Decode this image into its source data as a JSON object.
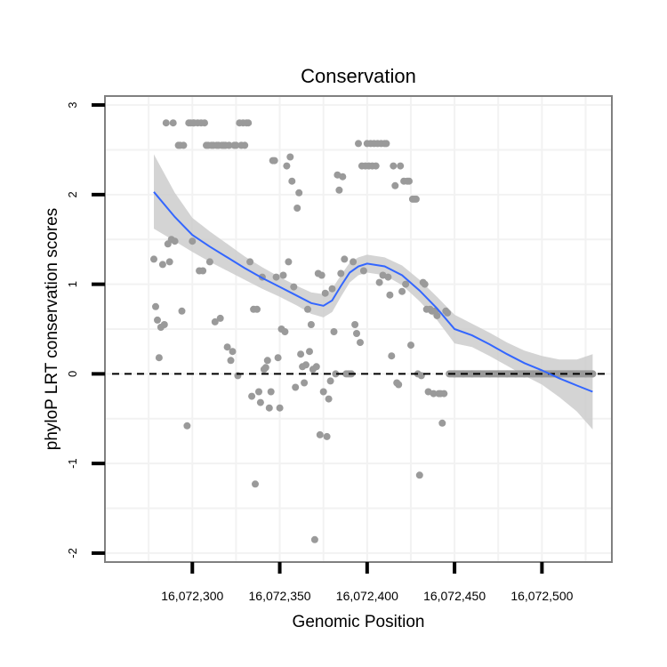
{
  "chart_data": {
    "type": "scatter",
    "title": "Conservation",
    "xlabel": "Genomic Position",
    "ylabel": "phyloP LRT conservation scores",
    "xlim": [
      16072250,
      16072540
    ],
    "ylim": [
      -2.1,
      3.1
    ],
    "x_ticks": [
      16072300,
      16072350,
      16072400,
      16072450,
      16072500
    ],
    "x_tick_labels": [
      "16,072,300",
      "16,072,350",
      "16,072,400",
      "16,072,450",
      "16,072,500"
    ],
    "y_ticks": [
      -2,
      -1,
      0,
      1,
      2,
      3
    ],
    "y_tick_labels": [
      "-2",
      "-1",
      "0",
      "1",
      "2",
      "3"
    ],
    "reference_line": {
      "y": 0,
      "style": "dashed"
    },
    "colors": {
      "points": "#9a9a9a",
      "smooth": "#3366ff",
      "band": "#cccccc",
      "frame": "#808080",
      "grid": "#f2f2f2"
    },
    "points": [
      [
        16072278,
        1.28
      ],
      [
        16072279,
        0.75
      ],
      [
        16072280,
        0.6
      ],
      [
        16072281,
        0.18
      ],
      [
        16072282,
        0.52
      ],
      [
        16072283,
        1.22
      ],
      [
        16072284,
        0.55
      ],
      [
        16072285,
        2.8
      ],
      [
        16072286,
        1.45
      ],
      [
        16072287,
        1.25
      ],
      [
        16072288,
        1.5
      ],
      [
        16072289,
        2.8
      ],
      [
        16072290,
        1.48
      ],
      [
        16072292,
        2.55
      ],
      [
        16072293,
        2.55
      ],
      [
        16072294,
        0.7
      ],
      [
        16072295,
        2.55
      ],
      [
        16072297,
        -0.58
      ],
      [
        16072298,
        2.8
      ],
      [
        16072299,
        2.8
      ],
      [
        16072300,
        1.48
      ],
      [
        16072300.5,
        2.8
      ],
      [
        16072301,
        2.8
      ],
      [
        16072303,
        2.8
      ],
      [
        16072304,
        1.15
      ],
      [
        16072305,
        2.8
      ],
      [
        16072306,
        1.15
      ],
      [
        16072307,
        2.8
      ],
      [
        16072308,
        2.55
      ],
      [
        16072309,
        2.55
      ],
      [
        16072310,
        1.25
      ],
      [
        16072311,
        2.55
      ],
      [
        16072312,
        2.55
      ],
      [
        16072313,
        0.58
      ],
      [
        16072314,
        2.55
      ],
      [
        16072315,
        2.55
      ],
      [
        16072316,
        0.62
      ],
      [
        16072317,
        2.55
      ],
      [
        16072318,
        2.55
      ],
      [
        16072319,
        2.55
      ],
      [
        16072320,
        0.3
      ],
      [
        16072321,
        2.55
      ],
      [
        16072322,
        0.15
      ],
      [
        16072323,
        0.25
      ],
      [
        16072324,
        2.55
      ],
      [
        16072325,
        2.55
      ],
      [
        16072326,
        -0.02
      ],
      [
        16072327,
        2.8
      ],
      [
        16072328,
        2.55
      ],
      [
        16072329,
        2.8
      ],
      [
        16072330,
        2.55
      ],
      [
        16072331,
        2.8
      ],
      [
        16072332,
        2.8
      ],
      [
        16072333,
        1.25
      ],
      [
        16072334,
        -0.25
      ],
      [
        16072335,
        0.72
      ],
      [
        16072336,
        -1.23
      ],
      [
        16072337,
        0.72
      ],
      [
        16072338,
        -0.2
      ],
      [
        16072339,
        -0.32
      ],
      [
        16072340,
        1.08
      ],
      [
        16072341,
        0.05
      ],
      [
        16072342,
        0.07
      ],
      [
        16072343,
        0.15
      ],
      [
        16072344,
        -0.38
      ],
      [
        16072345,
        -0.2
      ],
      [
        16072346,
        2.38
      ],
      [
        16072347,
        2.38
      ],
      [
        16072348,
        1.08
      ],
      [
        16072349,
        0.18
      ],
      [
        16072350,
        -0.38
      ],
      [
        16072351,
        0.5
      ],
      [
        16072352,
        1.1
      ],
      [
        16072353,
        0.47
      ],
      [
        16072354,
        2.32
      ],
      [
        16072355,
        1.25
      ],
      [
        16072356,
        2.42
      ],
      [
        16072357,
        2.15
      ],
      [
        16072358,
        0.97
      ],
      [
        16072359,
        -0.15
      ],
      [
        16072360,
        1.85
      ],
      [
        16072361,
        2.02
      ],
      [
        16072362,
        0.22
      ],
      [
        16072363,
        0.08
      ],
      [
        16072364,
        -0.1
      ],
      [
        16072365,
        0.1
      ],
      [
        16072366,
        0.72
      ],
      [
        16072367,
        0.25
      ],
      [
        16072368,
        0.55
      ],
      [
        16072369,
        0.05
      ],
      [
        16072370,
        -1.85
      ],
      [
        16072371,
        0.08
      ],
      [
        16072372,
        1.12
      ],
      [
        16072373,
        -0.68
      ],
      [
        16072374,
        1.1
      ],
      [
        16072375,
        -0.2
      ],
      [
        16072376,
        0.9
      ],
      [
        16072377,
        -0.7
      ],
      [
        16072378,
        -0.28
      ],
      [
        16072379,
        -0.08
      ],
      [
        16072380,
        0.95
      ],
      [
        16072381,
        0.47
      ],
      [
        16072382,
        0.0
      ],
      [
        16072383,
        2.22
      ],
      [
        16072384,
        2.05
      ],
      [
        16072385,
        1.12
      ],
      [
        16072386,
        2.2
      ],
      [
        16072387,
        1.28
      ],
      [
        16072388,
        0.0
      ],
      [
        16072389,
        0.0
      ],
      [
        16072390,
        0.0
      ],
      [
        16072391,
        0.0
      ],
      [
        16072392,
        1.25
      ],
      [
        16072393,
        0.55
      ],
      [
        16072394,
        0.45
      ],
      [
        16072395,
        2.57
      ],
      [
        16072396,
        0.35
      ],
      [
        16072397,
        2.32
      ],
      [
        16072398,
        1.15
      ],
      [
        16072399,
        2.32
      ],
      [
        16072400,
        2.57
      ],
      [
        16072401,
        2.32
      ],
      [
        16072402,
        2.57
      ],
      [
        16072403,
        2.32
      ],
      [
        16072404,
        2.57
      ],
      [
        16072405,
        2.32
      ],
      [
        16072406,
        2.57
      ],
      [
        16072407,
        1.02
      ],
      [
        16072408,
        2.57
      ],
      [
        16072409,
        1.1
      ],
      [
        16072410,
        2.57
      ],
      [
        16072411,
        2.57
      ],
      [
        16072412,
        1.08
      ],
      [
        16072413,
        0.88
      ],
      [
        16072414,
        0.2
      ],
      [
        16072415,
        2.32
      ],
      [
        16072416,
        2.1
      ],
      [
        16072417,
        -0.1
      ],
      [
        16072418,
        -0.12
      ],
      [
        16072419,
        2.32
      ],
      [
        16072420,
        0.92
      ],
      [
        16072421,
        2.15
      ],
      [
        16072422,
        1.0
      ],
      [
        16072423,
        2.15
      ],
      [
        16072424,
        2.15
      ],
      [
        16072425,
        0.32
      ],
      [
        16072426,
        1.95
      ],
      [
        16072427,
        1.95
      ],
      [
        16072428,
        1.95
      ],
      [
        16072429,
        0.0
      ],
      [
        16072430,
        -1.13
      ],
      [
        16072431,
        -0.02
      ],
      [
        16072432,
        1.02
      ],
      [
        16072433,
        1.0
      ],
      [
        16072434,
        0.72
      ],
      [
        16072435,
        -0.2
      ],
      [
        16072436,
        0.72
      ],
      [
        16072437,
        0.7
      ],
      [
        16072438,
        -0.22
      ],
      [
        16072439,
        0.7
      ],
      [
        16072440,
        0.65
      ],
      [
        16072441,
        -0.22
      ],
      [
        16072442,
        -0.22
      ],
      [
        16072443,
        -0.55
      ],
      [
        16072444,
        -0.22
      ],
      [
        16072445,
        0.7
      ],
      [
        16072446,
        0.68
      ],
      [
        16072450,
        0.0
      ],
      [
        16072455,
        0.0
      ],
      [
        16072460,
        0.0
      ],
      [
        16072465,
        0.0
      ],
      [
        16072470,
        0.0
      ],
      [
        16072475,
        0.0
      ],
      [
        16072480,
        0.0
      ],
      [
        16072485,
        0.0
      ],
      [
        16072490,
        0.0
      ],
      [
        16072495,
        0.0
      ],
      [
        16072500,
        0.0
      ],
      [
        16072505,
        0.0
      ],
      [
        16072510,
        0.0
      ],
      [
        16072515,
        0.0
      ],
      [
        16072520,
        0.0
      ],
      [
        16072525,
        0.0
      ],
      [
        16072529,
        0.0
      ]
    ],
    "zero_run": {
      "from": 16072447,
      "to": 16072529,
      "y": 0.0
    },
    "smooth": {
      "x": [
        16072278,
        16072290,
        16072300,
        16072310,
        16072320,
        16072330,
        16072340,
        16072350,
        16072360,
        16072368,
        16072375,
        16072380,
        16072385,
        16072390,
        16072395,
        16072400,
        16072410,
        16072420,
        16072430,
        16072440,
        16072450,
        16072460,
        16072470,
        16072480,
        16072490,
        16072500,
        16072510,
        16072520,
        16072529
      ],
      "y": [
        2.03,
        1.75,
        1.55,
        1.42,
        1.3,
        1.18,
        1.07,
        0.97,
        0.87,
        0.79,
        0.76,
        0.82,
        0.98,
        1.13,
        1.2,
        1.23,
        1.2,
        1.1,
        0.93,
        0.73,
        0.5,
        0.43,
        0.33,
        0.22,
        0.12,
        0.04,
        -0.05,
        -0.13,
        -0.2
      ],
      "lower": [
        1.62,
        1.48,
        1.36,
        1.25,
        1.15,
        1.05,
        0.95,
        0.86,
        0.76,
        0.67,
        0.63,
        0.69,
        0.86,
        1.02,
        1.1,
        1.13,
        1.1,
        0.99,
        0.81,
        0.6,
        0.34,
        0.3,
        0.2,
        0.09,
        -0.02,
        -0.12,
        -0.26,
        -0.42,
        -0.62
      ],
      "upper": [
        2.45,
        2.02,
        1.74,
        1.59,
        1.45,
        1.31,
        1.19,
        1.08,
        0.98,
        0.91,
        0.89,
        0.95,
        1.1,
        1.24,
        1.3,
        1.33,
        1.3,
        1.21,
        1.05,
        0.86,
        0.66,
        0.56,
        0.46,
        0.35,
        0.26,
        0.2,
        0.16,
        0.16,
        0.22
      ]
    }
  }
}
